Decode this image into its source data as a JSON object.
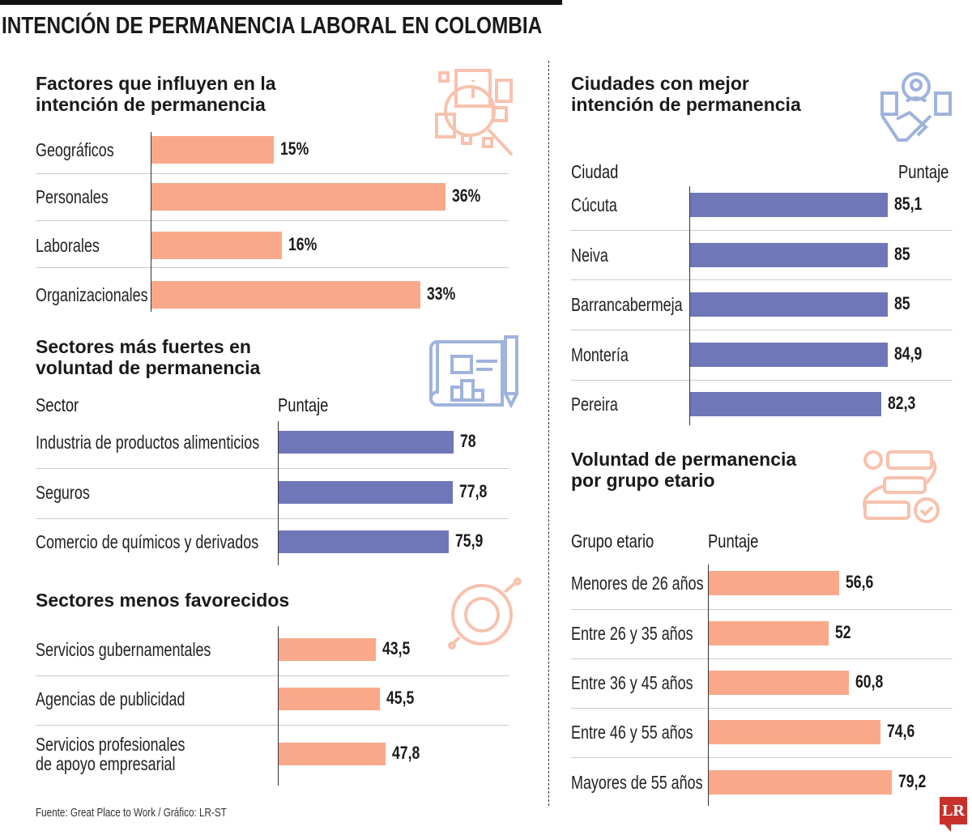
{
  "title": "INTENCIÓN DE PERMANENCIA LABORAL EN COLOMBIA",
  "source": "Fuente: Great Place to Work / Gráfico: LR-ST",
  "logo": "LR",
  "colors": {
    "salmon": "#f9a98a",
    "blue": "#6f77b8",
    "icon_salmon": "#f7c2ae",
    "icon_blue": "#9fb3dc"
  },
  "chart_data": [
    {
      "id": "factores",
      "type": "bar",
      "orientation": "horizontal",
      "title_lines": [
        "Factores que influyen en la",
        "intención de permanencia"
      ],
      "icon": "magnifier-info-icon",
      "categories": [
        "Geográficos",
        "Personales",
        "Laborales",
        "Organizacionales"
      ],
      "values": [
        15,
        36,
        16,
        33
      ],
      "value_labels": [
        "15%",
        "36%",
        "16%",
        "33%"
      ],
      "unit": "%",
      "color": "#f9a98a"
    },
    {
      "id": "fuertes",
      "type": "bar",
      "orientation": "horizontal",
      "title_lines": [
        "Sectores más fuertes en",
        "voluntad de permanencia"
      ],
      "icon": "blueprint-icon",
      "col_headers": [
        "Sector",
        "Puntaje"
      ],
      "categories": [
        "Industria de productos alimenticios",
        "Seguros",
        "Comercio de químicos y derivados"
      ],
      "values": [
        78,
        77.8,
        75.9
      ],
      "value_labels": [
        "78",
        "77,8",
        "75,9"
      ],
      "color": "#6f77b8"
    },
    {
      "id": "menos",
      "type": "bar",
      "orientation": "horizontal",
      "title_lines": [
        "Sectores menos favorecidos"
      ],
      "icon": "donut-chart-icon",
      "categories": [
        "Servicios gubernamentales",
        "Agencias de publicidad",
        "Servicios profesionales\nde apoyo empresarial"
      ],
      "values": [
        43.5,
        45.5,
        47.8
      ],
      "value_labels": [
        "43,5",
        "45,5",
        "47,8"
      ],
      "color": "#f9a98a"
    },
    {
      "id": "ciudades",
      "type": "bar",
      "orientation": "horizontal",
      "title_lines": [
        "Ciudades con mejor",
        "intención de permanencia"
      ],
      "icon": "handshake-team-icon",
      "col_headers": [
        "Ciudad",
        "Puntaje"
      ],
      "categories": [
        "Cúcuta",
        "Neiva",
        "Barrancabermeja",
        "Montería",
        "Pereira"
      ],
      "values": [
        85.1,
        85,
        85,
        84.9,
        82.3
      ],
      "value_labels": [
        "85,1",
        "85",
        "85",
        "84,9",
        "82,3"
      ],
      "color": "#6f77b8"
    },
    {
      "id": "grupo",
      "type": "bar",
      "orientation": "horizontal",
      "title_lines": [
        "Voluntad de permanencia",
        "por grupo etario"
      ],
      "icon": "workflow-icon",
      "col_headers": [
        "Grupo etario",
        "Puntaje"
      ],
      "categories": [
        "Menores de 26 años",
        "Entre 26 y 35 años",
        "Entre 36 y 45 años",
        "Entre 46 y 55 años",
        "Mayores de 55 años"
      ],
      "values": [
        56.6,
        52,
        60.8,
        74.6,
        79.2
      ],
      "value_labels": [
        "56,6",
        "52",
        "60,8",
        "74,6",
        "79,2"
      ],
      "color": "#f9a98a"
    }
  ]
}
